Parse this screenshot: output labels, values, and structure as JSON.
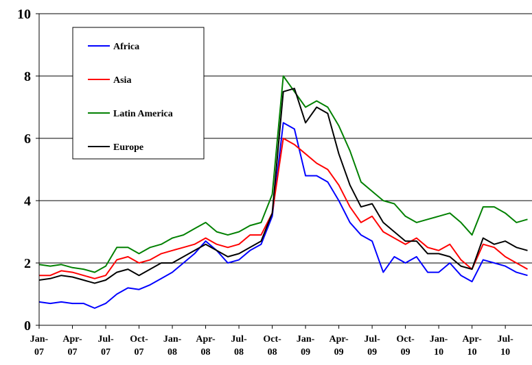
{
  "chart_data": {
    "type": "line",
    "x": [
      "Jan-07",
      "Feb-07",
      "Mar-07",
      "Apr-07",
      "May-07",
      "Jun-07",
      "Jul-07",
      "Aug-07",
      "Sep-07",
      "Oct-07",
      "Nov-07",
      "Dec-07",
      "Jan-08",
      "Feb-08",
      "Mar-08",
      "Apr-08",
      "May-08",
      "Jun-08",
      "Jul-08",
      "Aug-08",
      "Sep-08",
      "Oct-08",
      "Nov-08",
      "Dec-08",
      "Jan-09",
      "Feb-09",
      "Mar-09",
      "Apr-09",
      "May-09",
      "Jun-09",
      "Jul-09",
      "Aug-09",
      "Sep-09",
      "Oct-09",
      "Nov-09",
      "Dec-09",
      "Jan-10",
      "Feb-10",
      "Mar-10",
      "Apr-10",
      "May-10",
      "Jun-10",
      "Jul-10",
      "Aug-10",
      "Sep-10"
    ],
    "xticks": [
      {
        "value": "Jan-07",
        "label": [
          "Jan-",
          "07"
        ]
      },
      {
        "value": "Apr-07",
        "label": [
          "Apr-",
          "07"
        ]
      },
      {
        "value": "Jul-07",
        "label": [
          "Jul-",
          "07"
        ]
      },
      {
        "value": "Oct-07",
        "label": [
          "Oct-",
          "07"
        ]
      },
      {
        "value": "Jan-08",
        "label": [
          "Jan-",
          "08"
        ]
      },
      {
        "value": "Apr-08",
        "label": [
          "Apr-",
          "08"
        ]
      },
      {
        "value": "Jul-08",
        "label": [
          "Jul-",
          "08"
        ]
      },
      {
        "value": "Oct-08",
        "label": [
          "Oct-",
          "08"
        ]
      },
      {
        "value": "Jan-09",
        "label": [
          "Jan-",
          "09"
        ]
      },
      {
        "value": "Apr-09",
        "label": [
          "Apr-",
          "09"
        ]
      },
      {
        "value": "Jul-09",
        "label": [
          "Jul-",
          "09"
        ]
      },
      {
        "value": "Oct-09",
        "label": [
          "Oct-",
          "09"
        ]
      },
      {
        "value": "Jan-10",
        "label": [
          "Jan-",
          "10"
        ]
      },
      {
        "value": "Apr-10",
        "label": [
          "Apr-",
          "10"
        ]
      },
      {
        "value": "Jul-10",
        "label": [
          "Jul-",
          "10"
        ]
      }
    ],
    "ylim": [
      0,
      10
    ],
    "yticks": [
      0,
      2,
      4,
      6,
      8,
      10
    ],
    "grid": true,
    "legend": "upper left",
    "series": [
      {
        "name": "Africa",
        "color": "#0000ff",
        "values": [
          0.75,
          0.7,
          0.75,
          0.7,
          0.7,
          0.55,
          0.7,
          1.0,
          1.2,
          1.15,
          1.3,
          1.5,
          1.7,
          2.0,
          2.3,
          2.7,
          2.4,
          2.0,
          2.1,
          2.4,
          2.6,
          3.5,
          6.5,
          6.3,
          4.8,
          4.8,
          4.6,
          4.0,
          3.3,
          2.9,
          2.7,
          1.7,
          2.2,
          2.0,
          2.2,
          1.7,
          1.7,
          2.0,
          1.6,
          1.4,
          2.1,
          2.0,
          1.9,
          1.7,
          1.6
        ]
      },
      {
        "name": "Asia",
        "color": "#ff0000",
        "values": [
          1.6,
          1.6,
          1.75,
          1.7,
          1.6,
          1.5,
          1.6,
          2.1,
          2.2,
          2.0,
          2.1,
          2.3,
          2.4,
          2.5,
          2.6,
          2.8,
          2.6,
          2.5,
          2.6,
          2.9,
          2.9,
          3.6,
          6.0,
          5.8,
          5.5,
          5.2,
          5.0,
          4.5,
          3.8,
          3.3,
          3.5,
          3.0,
          2.8,
          2.6,
          2.8,
          2.5,
          2.4,
          2.6,
          2.1,
          1.8,
          2.6,
          2.5,
          2.2,
          2.0,
          1.8
        ]
      },
      {
        "name": "Latin America",
        "color": "#008000",
        "values": [
          1.95,
          1.9,
          1.95,
          1.85,
          1.8,
          1.7,
          1.9,
          2.5,
          2.5,
          2.3,
          2.5,
          2.6,
          2.8,
          2.9,
          3.1,
          3.3,
          3.0,
          2.9,
          3.0,
          3.2,
          3.3,
          4.2,
          8.0,
          7.5,
          7.0,
          7.2,
          7.0,
          6.4,
          5.6,
          4.6,
          4.3,
          4.0,
          3.9,
          3.5,
          3.3,
          3.4,
          3.5,
          3.6,
          3.3,
          2.9,
          3.8,
          3.8,
          3.6,
          3.3,
          3.4
        ]
      },
      {
        "name": "Europe",
        "color": "#000000",
        "values": [
          1.45,
          1.5,
          1.6,
          1.55,
          1.45,
          1.35,
          1.45,
          1.7,
          1.8,
          1.6,
          1.8,
          2.0,
          2.0,
          2.2,
          2.4,
          2.6,
          2.4,
          2.2,
          2.3,
          2.5,
          2.7,
          3.6,
          7.5,
          7.6,
          6.5,
          7.0,
          6.8,
          5.5,
          4.5,
          3.8,
          3.9,
          3.3,
          3.0,
          2.7,
          2.7,
          2.3,
          2.3,
          2.2,
          1.9,
          1.8,
          2.8,
          2.6,
          2.7,
          2.5,
          2.4
        ]
      }
    ]
  }
}
